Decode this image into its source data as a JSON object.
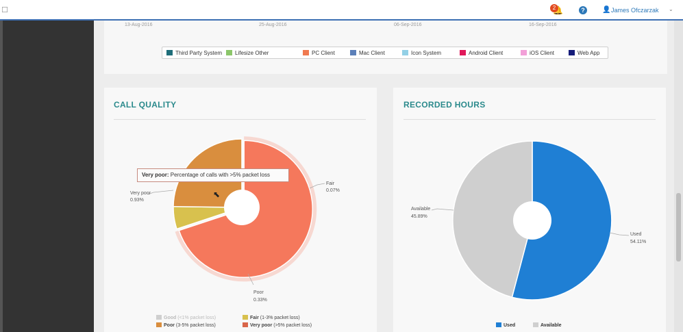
{
  "header": {
    "notification_count": "2",
    "help_label": "?",
    "user_name": "James Ofczarzak",
    "user_caret": "⌄"
  },
  "top_chart": {
    "x_ticks": [
      "13-Aug-2016",
      "25-Aug-2016",
      "06-Sep-2016",
      "16-Sep-2016"
    ],
    "legend": [
      {
        "label": "Third Party System",
        "color": "#1f6e7a"
      },
      {
        "label": "Lifesize Other",
        "color": "#8cc66a"
      },
      {
        "label": "PC Client",
        "color": "#f07a50"
      },
      {
        "label": "Mac Client",
        "color": "#5b7fb8"
      },
      {
        "label": "Icon System",
        "color": "#93d0e6"
      },
      {
        "label": "Android Client",
        "color": "#e0185a"
      },
      {
        "label": "iOS Client",
        "color": "#f2a0d8"
      },
      {
        "label": "Web App",
        "color": "#161c7a"
      }
    ]
  },
  "call_quality": {
    "title": "CALL QUALITY",
    "tooltip": {
      "label": "Very poor:",
      "text": " Percentage of calls with >5% packet loss"
    },
    "slice_labels": [
      {
        "name": "Very poor",
        "value": "0.93%"
      },
      {
        "name": "Fair",
        "value": "0.07%"
      },
      {
        "name": "Poor",
        "value": "0.33%"
      }
    ],
    "legend": [
      {
        "bold": "Good",
        "rest": " (<1% packet loss)",
        "color": "#cfcfcf",
        "faded": true
      },
      {
        "bold": "Fair",
        "rest": " (1-3% packet loss)",
        "color": "#d8c14e",
        "faded": false
      },
      {
        "bold": "Poor",
        "rest": " (3-5% packet loss)",
        "color": "#d98e3e",
        "faded": false
      },
      {
        "bold": "Very poor",
        "rest": " (>5% packet loss)",
        "color": "#d9664a",
        "faded": false
      }
    ]
  },
  "recorded_hours": {
    "title": "RECORDED HOURS",
    "slice_labels": [
      {
        "name": "Available",
        "value": "45.89%"
      },
      {
        "name": "Used",
        "value": "54.11%"
      }
    ],
    "legend": [
      {
        "label": "Used",
        "color": "#1f7fd4"
      },
      {
        "label": "Available",
        "color": "#cfcfcf"
      }
    ]
  },
  "chart_data": [
    {
      "type": "pie",
      "title": "CALL QUALITY",
      "categories": [
        "Very poor",
        "Fair",
        "Poor"
      ],
      "values": [
        0.93,
        0.07,
        0.33
      ],
      "value_labels": [
        "0.93%",
        "0.07%",
        "0.33%"
      ],
      "colors": [
        "#f5785c",
        "#d8c14e",
        "#d98e3e"
      ],
      "hole": true,
      "legend_placement": "bottom"
    },
    {
      "type": "pie",
      "title": "RECORDED HOURS",
      "categories": [
        "Used",
        "Available"
      ],
      "values": [
        54.11,
        45.89
      ],
      "value_labels": [
        "54.11%",
        "45.89%"
      ],
      "colors": [
        "#1f7fd4",
        "#cfcfcf"
      ],
      "hole": true,
      "legend_placement": "bottom"
    }
  ]
}
